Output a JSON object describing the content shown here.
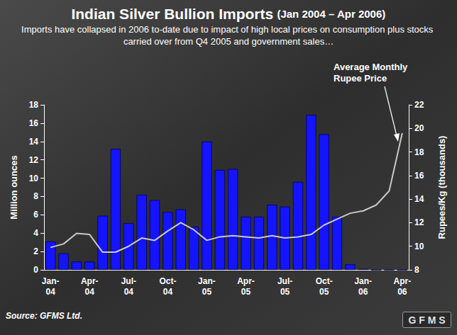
{
  "chart_data": {
    "type": "bar",
    "title": "Indian Silver Bullion Imports",
    "title_note": "(Jan 2004 – Apr 2006)",
    "subtitle": "Imports have collapsed in 2006 to-date due to impact of high local prices on consumption plus stocks carried over from Q4 2005 and government sales…",
    "y_label": "Million ounces",
    "y2_label": "Rupees/Kg (thousands)",
    "annotations": [
      "Average Monthly Rupee Price"
    ],
    "source": "Source: GFMS Ltd.",
    "logo": "GFMS",
    "categories": [
      "Jan-04",
      null,
      null,
      "Apr-04",
      null,
      null,
      "Jul-04",
      null,
      null,
      "Oct-04",
      null,
      null,
      "Jan-05",
      null,
      null,
      "Apr-05",
      null,
      null,
      "Jul-05",
      null,
      null,
      "Oct-05",
      null,
      null,
      "Jan-06",
      null,
      null,
      "Apr-06"
    ],
    "series": [
      {
        "type": "bar",
        "color": "#1414ff",
        "values": [
          3.1,
          1.8,
          0.9,
          0.9,
          5.9,
          13.2,
          5.1,
          8.2,
          7.6,
          6.3,
          6.6,
          4.7,
          14.0,
          10.9,
          11.0,
          5.8,
          5.8,
          7.1,
          6.9,
          9.6,
          16.9,
          14.8,
          5.8,
          0.6,
          0.1,
          0,
          0,
          0
        ]
      },
      {
        "type": "line",
        "axis": "y2",
        "color": "#c8c8c8",
        "values": [
          9.9,
          10.2,
          11.1,
          11.0,
          9.5,
          9.5,
          10.0,
          10.7,
          10.5,
          11.3,
          12.0,
          11.4,
          10.5,
          10.8,
          10.9,
          10.8,
          10.7,
          10.9,
          10.7,
          10.8,
          11.0,
          11.8,
          12.3,
          12.8,
          13.0,
          13.5,
          14.7,
          19.6
        ]
      }
    ],
    "ylim": [
      0,
      18
    ],
    "yticks": [
      0,
      2,
      4,
      6,
      8,
      10,
      12,
      14,
      16,
      18
    ],
    "y2lim": [
      8,
      22
    ],
    "y2ticks": [
      8,
      10,
      12,
      14,
      16,
      18,
      20,
      22
    ],
    "grid": false
  }
}
